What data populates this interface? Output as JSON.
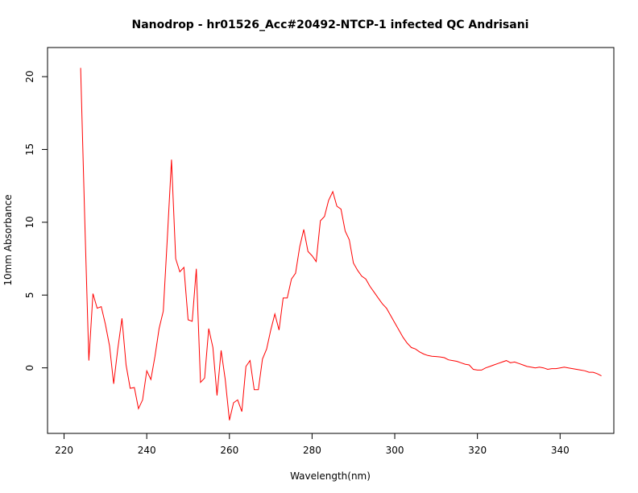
{
  "chart_data": {
    "type": "line",
    "title": "Nanodrop - hr01526_Acc#20492-NTCP-1 infected QC Andrisani",
    "xlabel": "Wavelength(nm)",
    "ylabel": "10mm Absorbance",
    "xlim": [
      216,
      353
    ],
    "ylim": [
      -4.5,
      22
    ],
    "x_ticks": [
      220,
      240,
      260,
      280,
      300,
      320,
      340
    ],
    "y_ticks": [
      0,
      5,
      10,
      15,
      20
    ],
    "grid": false,
    "series": [
      {
        "color": "#ff0000",
        "points": [
          [
            224,
            20.6
          ],
          [
            225,
            10.2
          ],
          [
            226,
            0.5
          ],
          [
            227,
            5.1
          ],
          [
            228,
            4.1
          ],
          [
            229,
            4.2
          ],
          [
            230,
            3.0
          ],
          [
            231,
            1.5
          ],
          [
            232,
            -1.1
          ],
          [
            233,
            1.3
          ],
          [
            234,
            3.4
          ],
          [
            235,
            0.2
          ],
          [
            236,
            -1.4
          ],
          [
            237,
            -1.35
          ],
          [
            238,
            -2.8
          ],
          [
            239,
            -2.2
          ],
          [
            240,
            -0.2
          ],
          [
            241,
            -0.8
          ],
          [
            242,
            0.8
          ],
          [
            243,
            2.7
          ],
          [
            244,
            3.9
          ],
          [
            245,
            9.0
          ],
          [
            246,
            14.3
          ],
          [
            247,
            7.5
          ],
          [
            248,
            6.6
          ],
          [
            249,
            6.9
          ],
          [
            250,
            3.3
          ],
          [
            251,
            3.2
          ],
          [
            252,
            6.8
          ],
          [
            253,
            -1.0
          ],
          [
            254,
            -0.7
          ],
          [
            255,
            2.7
          ],
          [
            256,
            1.4
          ],
          [
            257,
            -1.9
          ],
          [
            258,
            1.2
          ],
          [
            259,
            -0.8
          ],
          [
            260,
            -3.6
          ],
          [
            261,
            -2.4
          ],
          [
            262,
            -2.2
          ],
          [
            263,
            -3.0
          ],
          [
            264,
            0.1
          ],
          [
            265,
            0.5
          ],
          [
            266,
            -1.5
          ],
          [
            267,
            -1.5
          ],
          [
            268,
            0.6
          ],
          [
            269,
            1.3
          ],
          [
            270,
            2.6
          ],
          [
            271,
            3.7
          ],
          [
            272,
            2.6
          ],
          [
            273,
            4.8
          ],
          [
            274,
            4.8
          ],
          [
            275,
            6.1
          ],
          [
            276,
            6.5
          ],
          [
            277,
            8.3
          ],
          [
            278,
            9.5
          ],
          [
            279,
            8.0
          ],
          [
            280,
            7.7
          ],
          [
            281,
            7.3
          ],
          [
            282,
            10.1
          ],
          [
            283,
            10.4
          ],
          [
            284,
            11.5
          ],
          [
            285,
            12.1
          ],
          [
            286,
            11.1
          ],
          [
            287,
            10.9
          ],
          [
            288,
            9.4
          ],
          [
            289,
            8.8
          ],
          [
            290,
            7.2
          ],
          [
            291,
            6.7
          ],
          [
            292,
            6.3
          ],
          [
            293,
            6.1
          ],
          [
            294,
            5.6
          ],
          [
            295,
            5.2
          ],
          [
            296,
            4.8
          ],
          [
            297,
            4.4
          ],
          [
            298,
            4.1
          ],
          [
            299,
            3.6
          ],
          [
            300,
            3.1
          ],
          [
            301,
            2.6
          ],
          [
            302,
            2.1
          ],
          [
            303,
            1.7
          ],
          [
            304,
            1.4
          ],
          [
            305,
            1.3
          ],
          [
            306,
            1.1
          ],
          [
            307,
            0.95
          ],
          [
            308,
            0.85
          ],
          [
            309,
            0.8
          ],
          [
            310,
            0.78
          ],
          [
            311,
            0.75
          ],
          [
            312,
            0.7
          ],
          [
            313,
            0.55
          ],
          [
            314,
            0.5
          ],
          [
            315,
            0.45
          ],
          [
            316,
            0.35
          ],
          [
            317,
            0.25
          ],
          [
            318,
            0.2
          ],
          [
            319,
            -0.1
          ],
          [
            320,
            -0.15
          ],
          [
            321,
            -0.15
          ],
          [
            322,
            0.0
          ],
          [
            323,
            0.1
          ],
          [
            324,
            0.2
          ],
          [
            325,
            0.3
          ],
          [
            326,
            0.4
          ],
          [
            327,
            0.5
          ],
          [
            328,
            0.35
          ],
          [
            329,
            0.4
          ],
          [
            330,
            0.3
          ],
          [
            331,
            0.2
          ],
          [
            332,
            0.1
          ],
          [
            333,
            0.05
          ],
          [
            334,
            0.0
          ],
          [
            335,
            0.05
          ],
          [
            336,
            0.0
          ],
          [
            337,
            -0.1
          ],
          [
            338,
            -0.05
          ],
          [
            339,
            -0.05
          ],
          [
            340,
            0.0
          ],
          [
            341,
            0.05
          ],
          [
            342,
            0.0
          ],
          [
            343,
            -0.05
          ],
          [
            344,
            -0.1
          ],
          [
            345,
            -0.15
          ],
          [
            346,
            -0.2
          ],
          [
            347,
            -0.3
          ],
          [
            348,
            -0.3
          ],
          [
            349,
            -0.4
          ],
          [
            350,
            -0.55
          ]
        ]
      }
    ]
  }
}
